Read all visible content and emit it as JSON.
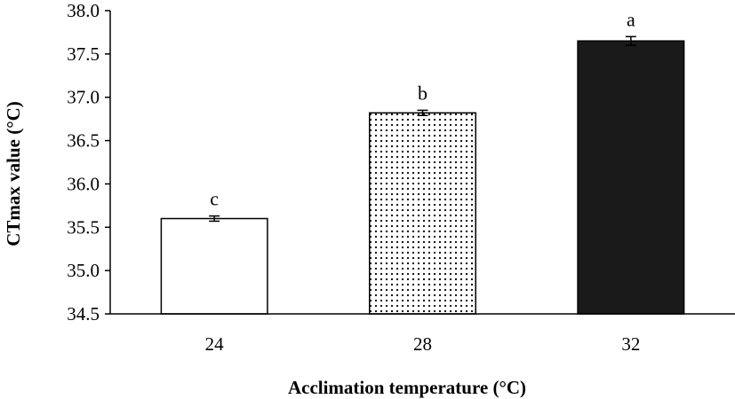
{
  "chart_data": {
    "type": "bar",
    "title": "",
    "xlabel": "Acclimation temperature (°C)",
    "ylabel": "CTmax value (°C)",
    "categories": [
      "24",
      "28",
      "32"
    ],
    "values": [
      35.6,
      36.82,
      37.65
    ],
    "errors": [
      0.03,
      0.03,
      0.05
    ],
    "significance_labels": [
      "c",
      "b",
      "a"
    ],
    "fills": [
      "white",
      "dotted",
      "black"
    ],
    "ylim": [
      34.5,
      38.0
    ],
    "yticks": [
      34.5,
      35.0,
      35.5,
      36.0,
      36.5,
      37.0,
      37.5,
      38.0
    ],
    "ytick_labels": [
      "34.5",
      "35.0",
      "35.5",
      "36.0",
      "36.5",
      "37.0",
      "37.5",
      "38.0"
    ],
    "grid": false,
    "legend": "none",
    "colors": {
      "bar_stroke": "#000000",
      "dark_fill": "#1a1a1a",
      "dot": "#000000"
    }
  }
}
